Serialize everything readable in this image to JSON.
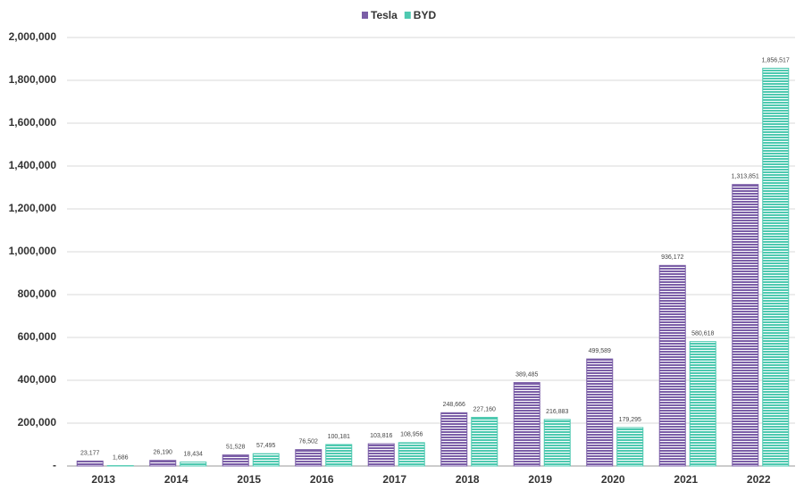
{
  "chart_data": {
    "type": "bar",
    "categories": [
      "2013",
      "2014",
      "2015",
      "2016",
      "2017",
      "2018",
      "2019",
      "2020",
      "2021",
      "2022"
    ],
    "series": [
      {
        "name": "Tesla",
        "color": "#7b5ea7",
        "values": [
          23177,
          26190,
          51528,
          76502,
          103816,
          248666,
          389485,
          499589,
          936172,
          1313851
        ],
        "value_labels": [
          "23,177",
          "26,190",
          "51,528",
          "76,502",
          "103,816",
          "248,666",
          "389,485",
          "499,589",
          "936,172",
          "1,313,851"
        ]
      },
      {
        "name": "BYD",
        "color": "#4ec9b0",
        "values": [
          1686,
          18434,
          57495,
          100181,
          108956,
          227160,
          216883,
          179295,
          580618,
          1856517
        ],
        "value_labels": [
          "1,686",
          "18,434",
          "57,495",
          "100,181",
          "108,956",
          "227,160",
          "216,883",
          "179,295",
          "580,618",
          "1,856,517"
        ]
      }
    ],
    "ylim": [
      0,
      2000000
    ],
    "yticks": [
      {
        "value": 0,
        "label": "-"
      },
      {
        "value": 200000,
        "label": "200,000"
      },
      {
        "value": 400000,
        "label": "400,000"
      },
      {
        "value": 600000,
        "label": "600,000"
      },
      {
        "value": 800000,
        "label": "800,000"
      },
      {
        "value": 1000000,
        "label": "1,000,000"
      },
      {
        "value": 1200000,
        "label": "1,200,000"
      },
      {
        "value": 1400000,
        "label": "1,400,000"
      },
      {
        "value": 1600000,
        "label": "1,600,000"
      },
      {
        "value": 1800000,
        "label": "1,800,000"
      },
      {
        "value": 2000000,
        "label": "2,000,000"
      }
    ],
    "grid": true,
    "legend": "top"
  }
}
